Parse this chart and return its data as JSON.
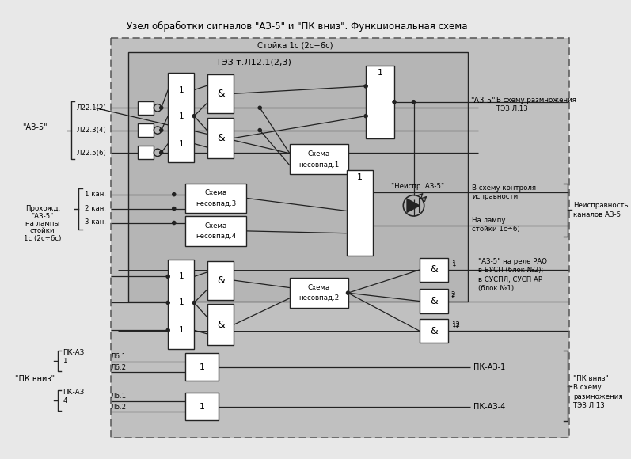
{
  "title": "Узел обработки сигналов \"АЗ-5\" и \"ПК вниз\". Функциональная схема",
  "stojka_label": "Стойка 1с (2с÷6с)",
  "tez_label": "ТЭЗ т.Л12.1(2,3)",
  "bg_gray": "#c0c0c0",
  "bg_outer": "#e8e8e8",
  "box_white": "#ffffff",
  "line_color": "#222222",
  "text_color": "#000000",
  "figsize": [
    7.97,
    5.8
  ],
  "dpi": 100
}
